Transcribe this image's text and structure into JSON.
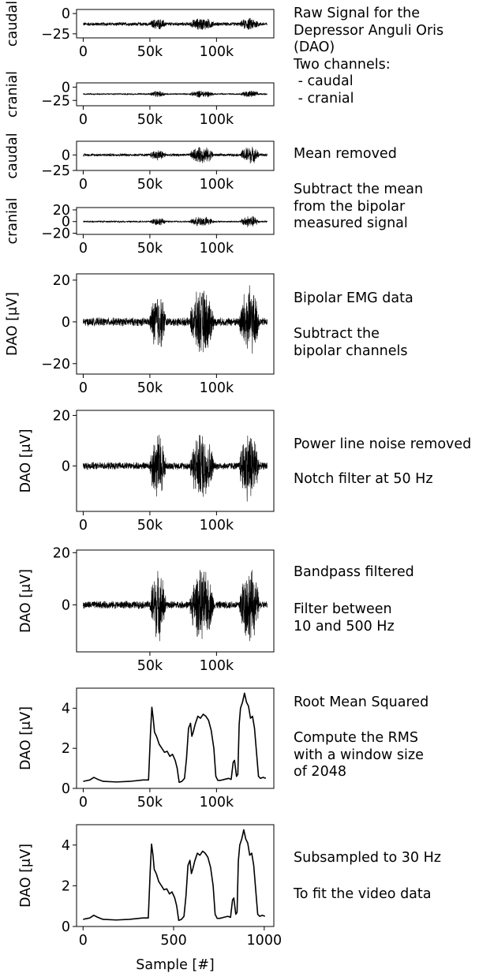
{
  "figure": {
    "xlabel": "Sample [#]",
    "descriptions": [
      {
        "lines": [
          "Raw Signal for the",
          "Depressor Anguli Oris",
          "(DAO)",
          "Two channels:",
          " - caudal",
          " - cranial"
        ]
      },
      {
        "lines": [
          "Mean removed"
        ]
      },
      {
        "lines": [
          "Subtract the mean",
          "from the bipolar",
          "measured signal"
        ]
      },
      {
        "lines": [
          "Bipolar EMG data"
        ]
      },
      {
        "lines": [
          "Subtract the",
          "bipolar channels"
        ]
      },
      {
        "lines": [
          "Power line noise removed"
        ]
      },
      {
        "lines": [
          "Notch filter at 50 Hz"
        ]
      },
      {
        "lines": [
          "Bandpass filtered"
        ]
      },
      {
        "lines": [
          "Filter between",
          "10 and 500 Hz"
        ]
      },
      {
        "lines": [
          "Root Mean Squared"
        ]
      },
      {
        "lines": [
          "Compute the RMS",
          "with a window size",
          "of 2048"
        ]
      },
      {
        "lines": [
          "Subsampled to 30 Hz"
        ]
      },
      {
        "lines": [
          "To fit the video data"
        ]
      }
    ]
  },
  "chart_data": [
    {
      "type": "line",
      "ylabel": "caudal",
      "xlim": [
        -5000,
        143000
      ],
      "ylim": [
        -30,
        5
      ],
      "xticks": [
        0,
        50000,
        100000
      ],
      "xtick_labels": [
        "0",
        "50k",
        "100k"
      ],
      "yticks": [
        0,
        -25
      ],
      "ytick_labels": [
        "0",
        "−25"
      ],
      "series": [
        {
          "baseline": -13,
          "noise": 2.5,
          "bursts": [
            {
              "start": 50000,
              "end": 62000,
              "amp": 5
            },
            {
              "start": 80000,
              "end": 98000,
              "amp": 6
            },
            {
              "start": 118000,
              "end": 132000,
              "amp": 6
            }
          ]
        }
      ]
    },
    {
      "type": "line",
      "ylabel": "cranial",
      "xlim": [
        -5000,
        143000
      ],
      "ylim": [
        -35,
        8
      ],
      "xticks": [
        0,
        50000,
        100000
      ],
      "xtick_labels": [
        "0",
        "50k",
        "100k"
      ],
      "yticks": [
        0,
        -25
      ],
      "ytick_labels": [
        "0",
        "−25"
      ],
      "series": [
        {
          "baseline": -13,
          "noise": 1.5,
          "bursts": [
            {
              "start": 50000,
              "end": 62000,
              "amp": 5
            },
            {
              "start": 80000,
              "end": 98000,
              "amp": 6
            },
            {
              "start": 118000,
              "end": 132000,
              "amp": 6
            }
          ]
        }
      ]
    },
    {
      "type": "line",
      "ylabel": "caudal",
      "xlim": [
        -5000,
        143000
      ],
      "ylim": [
        -25,
        22
      ],
      "xticks": [
        0,
        50000,
        100000
      ],
      "xtick_labels": [
        "0",
        "50k",
        "100k"
      ],
      "yticks": [
        0,
        -25
      ],
      "ytick_labels": [
        "0",
        "−25"
      ],
      "series": [
        {
          "baseline": 0,
          "noise": 2.5,
          "bursts": [
            {
              "start": 50000,
              "end": 62000,
              "amp": 7
            },
            {
              "start": 80000,
              "end": 98000,
              "amp": 12
            },
            {
              "start": 118000,
              "end": 132000,
              "amp": 13
            }
          ]
        }
      ]
    },
    {
      "type": "line",
      "ylabel": "cranial",
      "xlim": [
        -5000,
        143000
      ],
      "ylim": [
        -22,
        24
      ],
      "xticks": [
        0,
        50000,
        100000
      ],
      "xtick_labels": [
        "0",
        "50k",
        "100k"
      ],
      "yticks": [
        20,
        0,
        -20
      ],
      "ytick_labels": [
        "20",
        "0",
        "−20"
      ],
      "series": [
        {
          "baseline": 0,
          "noise": 1.5,
          "bursts": [
            {
              "start": 50000,
              "end": 62000,
              "amp": 6
            },
            {
              "start": 80000,
              "end": 98000,
              "amp": 8
            },
            {
              "start": 118000,
              "end": 132000,
              "amp": 10
            }
          ]
        }
      ]
    },
    {
      "type": "line",
      "ylabel": "DAO [μV]",
      "xlim": [
        -5000,
        143000
      ],
      "ylim": [
        -25,
        23
      ],
      "xticks": [
        0,
        50000,
        100000
      ],
      "xtick_labels": [
        "0",
        "50k",
        "100k"
      ],
      "yticks": [
        20,
        0,
        -20
      ],
      "ytick_labels": [
        "20",
        "0",
        "−20"
      ],
      "series": [
        {
          "baseline": 0,
          "noise": 2.2,
          "bursts": [
            {
              "start": 50000,
              "end": 62000,
              "amp": 13
            },
            {
              "start": 80000,
              "end": 98000,
              "amp": 15
            },
            {
              "start": 117000,
              "end": 132000,
              "amp": 16
            }
          ]
        }
      ]
    },
    {
      "type": "line",
      "ylabel": "DAO [μV]",
      "xlim": [
        -5000,
        143000
      ],
      "ylim": [
        -18,
        22
      ],
      "xticks": [
        0,
        50000,
        100000
      ],
      "xtick_labels": [
        "0",
        "50k",
        "100k"
      ],
      "yticks": [
        20,
        0
      ],
      "ytick_labels": [
        "20",
        "0"
      ],
      "series": [
        {
          "baseline": 0,
          "noise": 1.6,
          "bursts": [
            {
              "start": 50000,
              "end": 62000,
              "amp": 13
            },
            {
              "start": 80000,
              "end": 98000,
              "amp": 13
            },
            {
              "start": 117000,
              "end": 132000,
              "amp": 14
            }
          ]
        }
      ]
    },
    {
      "type": "line",
      "ylabel": "DAO [μV]",
      "xlim": [
        -5000,
        143000
      ],
      "ylim": [
        -18,
        21
      ],
      "xticks": [
        50000,
        100000
      ],
      "xtick_labels": [
        "50k",
        "100k"
      ],
      "yticks": [
        20,
        0
      ],
      "ytick_labels": [
        "20",
        "0"
      ],
      "series": [
        {
          "baseline": 0,
          "noise": 1.6,
          "bursts": [
            {
              "start": 50000,
              "end": 62000,
              "amp": 13
            },
            {
              "start": 80000,
              "end": 98000,
              "amp": 13
            },
            {
              "start": 117000,
              "end": 132000,
              "amp": 14
            }
          ]
        }
      ]
    },
    {
      "type": "line",
      "ylabel": "DAO [μV]",
      "xlim": [
        -5000,
        143000
      ],
      "ylim": [
        0,
        5
      ],
      "xticks": [
        0,
        50000,
        100000
      ],
      "xtick_labels": [
        "0",
        "50k",
        "100k"
      ],
      "yticks": [
        0,
        2,
        4
      ],
      "ytick_labels": [
        "0",
        "2",
        "4"
      ],
      "series": [
        {
          "x": [
            0,
            2000,
            5000,
            8000,
            11000,
            15000,
            25000,
            35000,
            45000,
            49000,
            50500,
            51500,
            52500,
            53500,
            55000,
            57000,
            59000,
            61000,
            63000,
            65000,
            67000,
            69000,
            70500,
            72000,
            74000,
            76000,
            77500,
            79000,
            80500,
            81500,
            82500,
            84000,
            86000,
            88000,
            90000,
            92000,
            94000,
            96000,
            98000,
            99500,
            101000,
            103000,
            106000,
            109000,
            111000,
            112500,
            113500,
            115000,
            116000,
            117000,
            118000,
            119500,
            121000,
            122500,
            124000,
            125500,
            127000,
            128500,
            130000,
            131500,
            133000,
            135000,
            137000
          ],
          "y": [
            0.35,
            0.38,
            0.42,
            0.55,
            0.45,
            0.35,
            0.32,
            0.35,
            0.42,
            0.42,
            2.8,
            4.05,
            3.5,
            2.8,
            2.6,
            2.2,
            2.0,
            1.8,
            1.85,
            1.6,
            1.7,
            1.4,
            1.0,
            0.3,
            0.35,
            0.5,
            1.5,
            3.0,
            3.25,
            2.6,
            2.8,
            3.2,
            3.6,
            3.5,
            3.7,
            3.6,
            3.4,
            2.9,
            2.0,
            0.6,
            0.4,
            0.4,
            0.45,
            0.5,
            0.45,
            1.3,
            1.4,
            0.6,
            0.7,
            3.2,
            4.0,
            4.3,
            4.75,
            4.3,
            4.1,
            3.5,
            3.6,
            3.0,
            1.8,
            0.6,
            0.5,
            0.55,
            0.5
          ]
        }
      ]
    },
    {
      "type": "line",
      "ylabel": "DAO [μV]",
      "xlim": [
        -36,
        1053
      ],
      "ylim": [
        0,
        5
      ],
      "xticks": [
        0,
        500,
        1000
      ],
      "xtick_labels": [
        "0",
        "500",
        "1000"
      ],
      "yticks": [
        0,
        2,
        4
      ],
      "ytick_labels": [
        "0",
        "2",
        "4"
      ],
      "series": [
        {
          "x": [
            0,
            15,
            37,
            59,
            81,
            110,
            183,
            256,
            330,
            360,
            371,
            378,
            386,
            393,
            404,
            418,
            433,
            447,
            462,
            477,
            491,
            506,
            517,
            528,
            543,
            557,
            568,
            579,
            590,
            598,
            605,
            616,
            631,
            645,
            660,
            674,
            689,
            704,
            718,
            729,
            740,
            755,
            777,
            799,
            814,
            825,
            832,
            843,
            850,
            857,
            865,
            876,
            887,
            898,
            909,
            920,
            931,
            942,
            953,
            964,
            975,
            990,
            1004
          ],
          "y": [
            0.35,
            0.38,
            0.42,
            0.55,
            0.45,
            0.35,
            0.32,
            0.35,
            0.42,
            0.42,
            2.8,
            4.05,
            3.5,
            2.8,
            2.6,
            2.2,
            2.0,
            1.8,
            1.85,
            1.6,
            1.7,
            1.4,
            1.0,
            0.3,
            0.35,
            0.5,
            1.5,
            3.0,
            3.25,
            2.6,
            2.8,
            3.2,
            3.6,
            3.5,
            3.7,
            3.6,
            3.4,
            2.9,
            2.0,
            0.6,
            0.4,
            0.4,
            0.45,
            0.5,
            0.45,
            1.3,
            1.4,
            0.6,
            0.7,
            3.2,
            4.0,
            4.3,
            4.75,
            4.3,
            4.1,
            3.5,
            3.6,
            3.0,
            1.8,
            0.6,
            0.5,
            0.55,
            0.5
          ]
        }
      ]
    }
  ]
}
